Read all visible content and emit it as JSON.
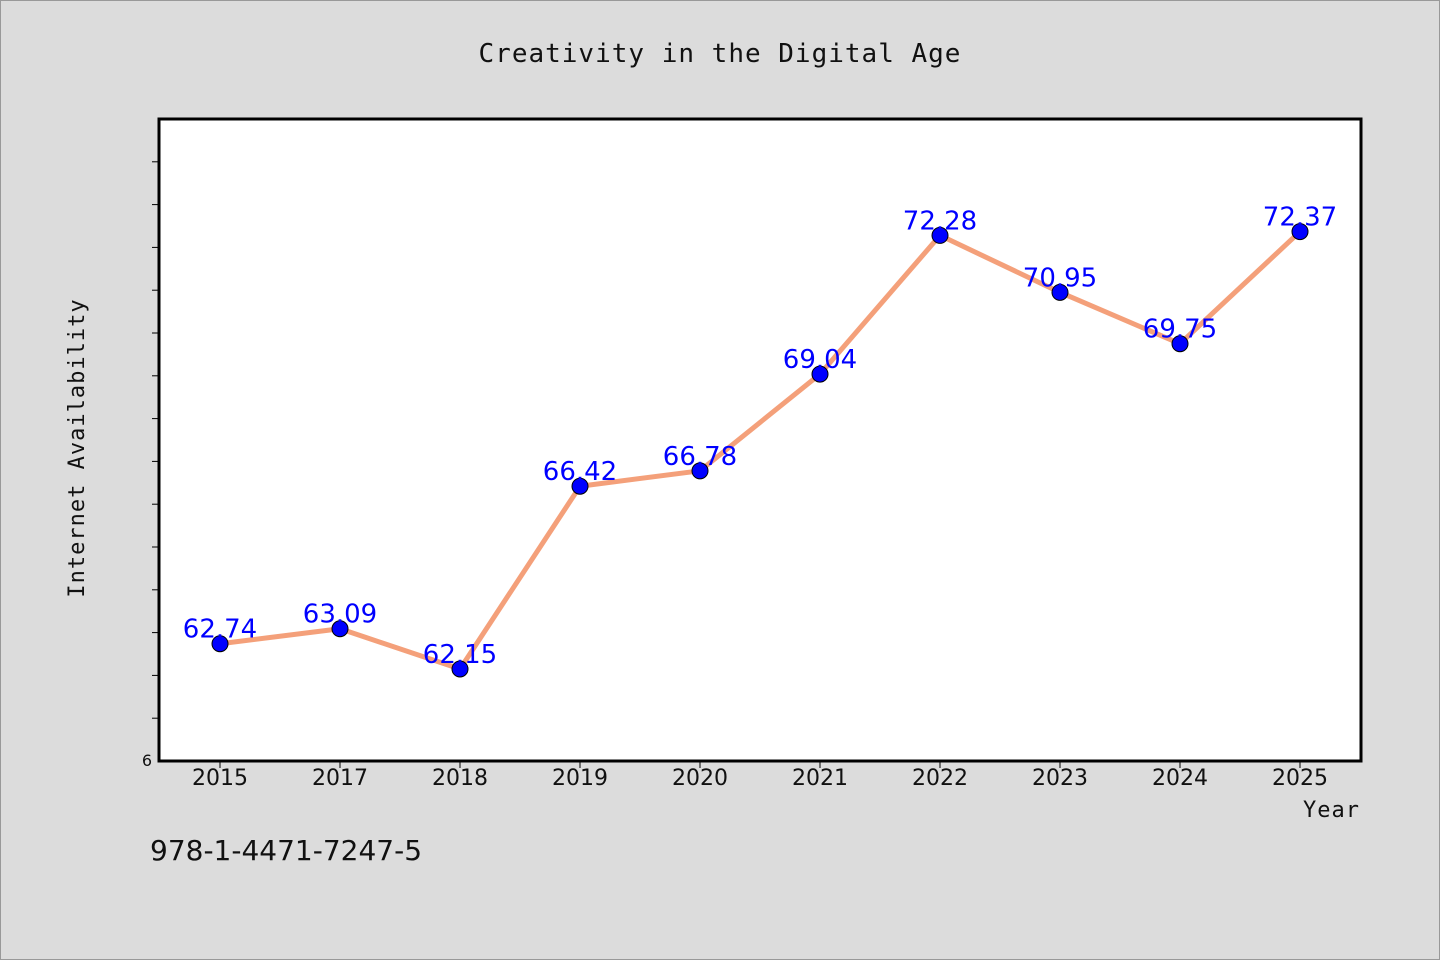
{
  "footer": {
    "isbn": "978-1-4471-7247-5"
  },
  "chart_data": {
    "type": "line",
    "title": "Creativity in the Digital Age",
    "xlabel": "Year",
    "ylabel": "Internet Availability",
    "categories": [
      "2015",
      "2017",
      "2018",
      "2019",
      "2020",
      "2021",
      "2022",
      "2023",
      "2024",
      "2025"
    ],
    "series": [
      {
        "values": [
          62.74,
          63.09,
          62.15,
          66.42,
          66.78,
          69.04,
          72.28,
          70.95,
          69.75,
          72.37
        ],
        "labels": [
          "62.74",
          "63.09",
          "62.15",
          "66.42",
          "66.78",
          "69.04",
          "72.28",
          "70.95",
          "69.75",
          "72.37"
        ]
      }
    ],
    "ylim": [
      60,
      75
    ],
    "y_ticks_labeled": [
      "6"
    ],
    "grid": false,
    "legend": "none",
    "colors": {
      "line": "#f4a07a",
      "marker": "#0000ff",
      "label": "#0000ff"
    }
  }
}
